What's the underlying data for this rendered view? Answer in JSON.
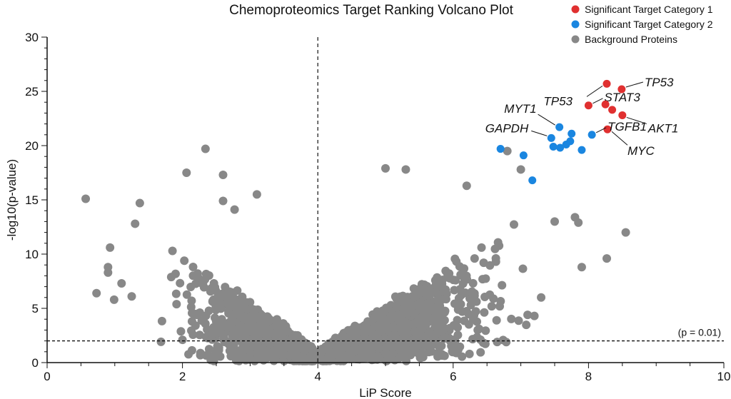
{
  "chart_data": {
    "type": "scatter",
    "title": "Chemoproteomics Target Ranking Volcano Plot",
    "xlabel": "LiP Score",
    "ylabel": "-log10(p-value)",
    "xlim": [
      0,
      10
    ],
    "ylim": [
      0,
      30
    ],
    "xticks": [
      "0",
      "2",
      "4",
      "6",
      "8",
      "10"
    ],
    "yticks": [
      "0",
      "5",
      "10",
      "15",
      "20",
      "25",
      "30"
    ],
    "grid": false,
    "legend_position": "top-right",
    "reference_lines": {
      "vertical_x": 4,
      "horizontal_y": 2,
      "horizontal_label": "(p = 0.01)"
    },
    "series": [
      {
        "name": "Significant Target Category 1",
        "color": "#e03030",
        "points": [
          {
            "x": 8.27,
            "y": 25.7,
            "label": "TP53"
          },
          {
            "x": 8.49,
            "y": 25.2,
            "label": "TP53"
          },
          {
            "x": 8.0,
            "y": 23.7,
            "label": "STAT3"
          },
          {
            "x": 8.25,
            "y": 23.8
          },
          {
            "x": 8.35,
            "y": 23.3
          },
          {
            "x": 8.5,
            "y": 22.8,
            "label": "AKT1"
          },
          {
            "x": 8.28,
            "y": 21.5,
            "label": "MYC"
          }
        ]
      },
      {
        "name": "Significant Target Category 2",
        "color": "#1a86e0",
        "points": [
          {
            "x": 7.57,
            "y": 21.7,
            "label": "MYT1"
          },
          {
            "x": 7.45,
            "y": 20.7,
            "label": "GAPDH"
          },
          {
            "x": 7.75,
            "y": 21.1
          },
          {
            "x": 7.73,
            "y": 20.4
          },
          {
            "x": 7.67,
            "y": 20.1
          },
          {
            "x": 7.48,
            "y": 19.9
          },
          {
            "x": 7.58,
            "y": 19.8
          },
          {
            "x": 8.05,
            "y": 21.0,
            "label": "TGFB1"
          },
          {
            "x": 7.9,
            "y": 19.6
          },
          {
            "x": 6.7,
            "y": 19.7
          },
          {
            "x": 7.04,
            "y": 19.1
          },
          {
            "x": 7.17,
            "y": 16.8
          }
        ]
      },
      {
        "name": "Background Proteins",
        "color": "#888888",
        "points": [
          {
            "x": 0.57,
            "y": 15.1
          },
          {
            "x": 0.73,
            "y": 6.4
          },
          {
            "x": 0.93,
            "y": 10.6
          },
          {
            "x": 0.9,
            "y": 8.8
          },
          {
            "x": 0.9,
            "y": 8.3
          },
          {
            "x": 0.99,
            "y": 5.8
          },
          {
            "x": 1.1,
            "y": 7.3
          },
          {
            "x": 1.25,
            "y": 6.1
          },
          {
            "x": 1.3,
            "y": 12.8
          },
          {
            "x": 1.37,
            "y": 14.7
          },
          {
            "x": 2.06,
            "y": 17.5
          },
          {
            "x": 2.34,
            "y": 19.7
          },
          {
            "x": 2.6,
            "y": 17.3
          },
          {
            "x": 2.77,
            "y": 14.1
          },
          {
            "x": 2.6,
            "y": 14.9
          },
          {
            "x": 3.1,
            "y": 15.5
          },
          {
            "x": 5.0,
            "y": 17.9
          },
          {
            "x": 5.3,
            "y": 17.8
          },
          {
            "x": 6.8,
            "y": 19.5
          },
          {
            "x": 7.0,
            "y": 17.8
          },
          {
            "x": 6.2,
            "y": 16.3
          },
          {
            "x": 7.9,
            "y": 8.8
          },
          {
            "x": 8.27,
            "y": 9.6
          },
          {
            "x": 8.55,
            "y": 12.0
          },
          {
            "x": 7.85,
            "y": 12.9
          },
          {
            "x": 7.8,
            "y": 13.4
          },
          {
            "x": 7.5,
            "y": 13.0
          },
          {
            "x": 7.3,
            "y": 6.0
          },
          {
            "x": 7.2,
            "y": 4.3
          },
          {
            "x": 7.1,
            "y": 4.4
          },
          {
            "x": 6.65,
            "y": 1.9
          },
          {
            "x": 2.0,
            "y": 2.1
          }
        ]
      }
    ]
  }
}
